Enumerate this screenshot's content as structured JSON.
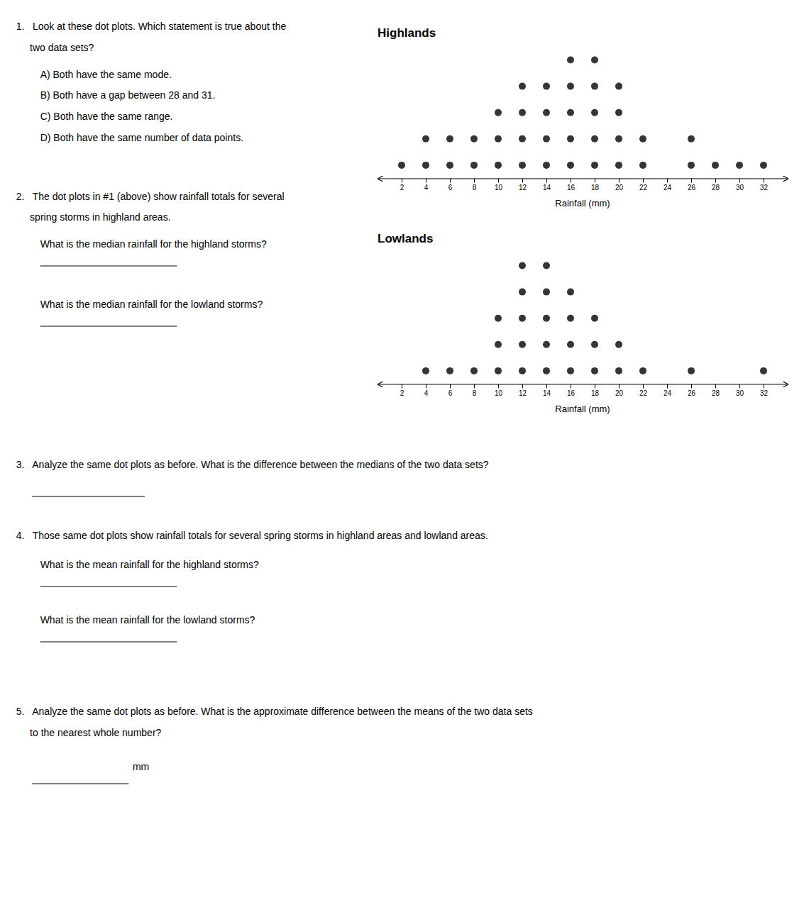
{
  "chart_data": [
    {
      "type": "dot",
      "title": "Highlands",
      "x_label": "Rainfall (mm)",
      "x": [
        2,
        4,
        6,
        8,
        10,
        12,
        14,
        16,
        18,
        20,
        22,
        24,
        26,
        28,
        30,
        32
      ],
      "values": [
        1,
        2,
        2,
        2,
        3,
        4,
        4,
        5,
        5,
        4,
        2,
        0,
        2,
        1,
        1,
        1
      ],
      "color": "#353535",
      "xlim": [
        0,
        34
      ],
      "xticks": [
        2,
        4,
        6,
        8,
        10,
        12,
        14,
        16,
        18,
        20,
        22,
        24,
        26,
        28,
        30,
        32
      ],
      "ylim": [
        0,
        6.2
      ],
      "tick_labels": "x",
      "grid": false
    },
    {
      "type": "dot",
      "title": "Lowlands",
      "x_label": "Rainfall (mm)",
      "x": [
        2,
        4,
        6,
        8,
        10,
        12,
        14,
        16,
        18,
        20,
        22,
        24,
        26,
        28,
        30,
        32
      ],
      "values": [
        0,
        1,
        1,
        1,
        3,
        5,
        5,
        4,
        3,
        2,
        1,
        0,
        1,
        0,
        0,
        1
      ],
      "color": "#353535",
      "xlim": [
        0,
        34
      ],
      "xticks": [
        2,
        4,
        6,
        8,
        10,
        12,
        14,
        16,
        18,
        20,
        22,
        24,
        26,
        28,
        30,
        32
      ],
      "ylim": [
        0,
        6.2
      ],
      "tick_labels": "x",
      "grid": false
    }
  ],
  "annotations": [
    "1.   Look at these dot plots. Which statement is true about the",
    "     two data sets?",
    "A) Both have the same mode.",
    "B) Both have a gap between 28 and 31.",
    "C) Both have the same range.",
    "D) Both have the same number of data points.",
    "2.   The dot plots in #1 (above) show rainfall totals for several",
    "     spring storms in highland areas.",
    "What is the median rainfall for the highland storms?",
    "What is the median rainfall for the lowland storms?",
    "3.   Analyze the same dot plots as before. What is the difference between the medians of the two data sets?",
    "4.   Those same dot plots show rainfall totals for several spring storms in highland areas and lowland areas.",
    "What is the mean rainfall for the highland storms?",
    "What is the mean rainfall for the lowland storms?",
    "5.   Analyze the same dot plots as before. What is the approximate difference between the means of the two data sets",
    "     to the nearest whole number?",
    "mm"
  ]
}
